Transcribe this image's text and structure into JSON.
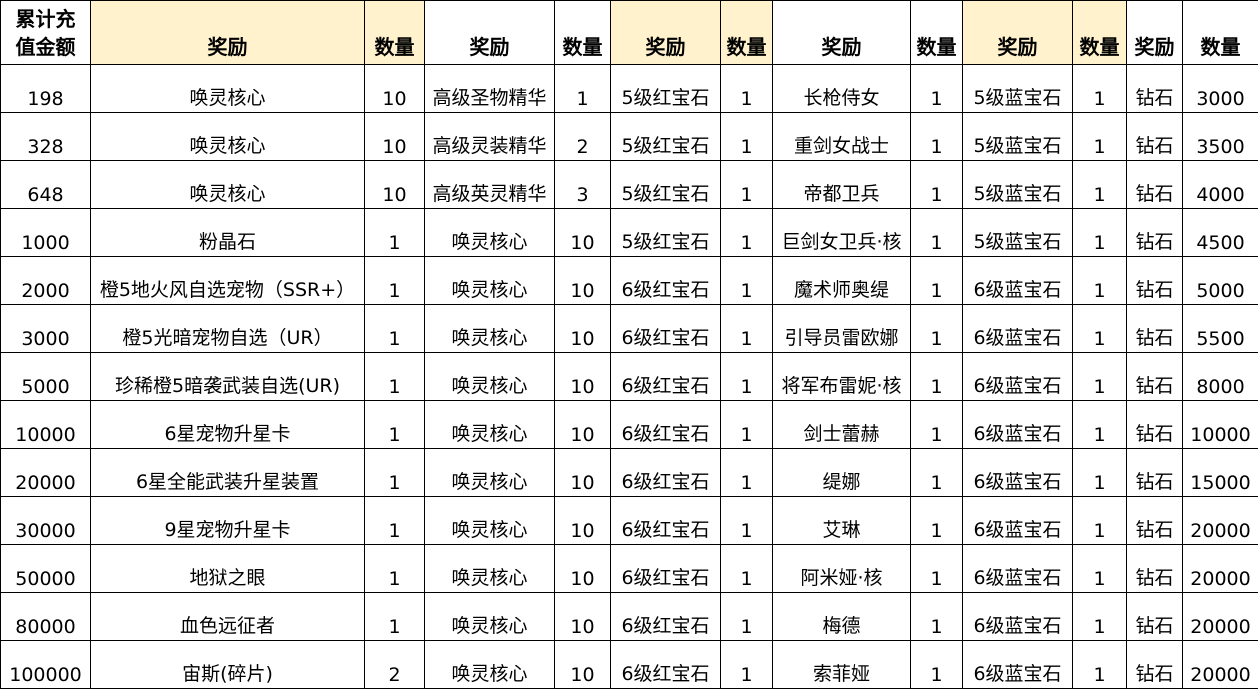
{
  "headers": [
    "累计充值金额",
    "奖励",
    "数量",
    "奖励",
    "数量",
    "奖励",
    "数量",
    "奖励",
    "数量",
    "奖励",
    "数量",
    "奖励",
    "数量"
  ],
  "header_fill": "#fff2cc",
  "rows": [
    [
      "198",
      "唤灵核心",
      "10",
      "高级圣物精华",
      "1",
      "5级红宝石",
      "1",
      "长枪侍女",
      "1",
      "5级蓝宝石",
      "1",
      "钻石",
      "3000"
    ],
    [
      "328",
      "唤灵核心",
      "10",
      "高级灵装精华",
      "2",
      "5级红宝石",
      "1",
      "重剑女战士",
      "1",
      "5级蓝宝石",
      "1",
      "钻石",
      "3500"
    ],
    [
      "648",
      "唤灵核心",
      "10",
      "高级英灵精华",
      "3",
      "5级红宝石",
      "1",
      "帝都卫兵",
      "1",
      "5级蓝宝石",
      "1",
      "钻石",
      "4000"
    ],
    [
      "1000",
      "粉晶石",
      "1",
      "唤灵核心",
      "10",
      "5级红宝石",
      "1",
      "巨剑女卫兵·核",
      "1",
      "5级蓝宝石",
      "1",
      "钻石",
      "4500"
    ],
    [
      "2000",
      "橙5地火风自选宠物（SSR+）",
      "1",
      "唤灵核心",
      "10",
      "6级红宝石",
      "1",
      "魔术师奥缇",
      "1",
      "6级蓝宝石",
      "1",
      "钻石",
      "5000"
    ],
    [
      "3000",
      "橙5光暗宠物自选（UR）",
      "1",
      "唤灵核心",
      "10",
      "6级红宝石",
      "1",
      "引导员雷欧娜",
      "1",
      "6级蓝宝石",
      "1",
      "钻石",
      "5500"
    ],
    [
      "5000",
      "珍稀橙5暗袭武装自选(UR)",
      "1",
      "唤灵核心",
      "10",
      "6级红宝石",
      "1",
      "将军布雷妮·核",
      "1",
      "6级蓝宝石",
      "1",
      "钻石",
      "8000"
    ],
    [
      "10000",
      "6星宠物升星卡",
      "1",
      "唤灵核心",
      "10",
      "6级红宝石",
      "1",
      "剑士蕾赫",
      "1",
      "6级蓝宝石",
      "1",
      "钻石",
      "10000"
    ],
    [
      "20000",
      "6星全能武装升星装置",
      "1",
      "唤灵核心",
      "10",
      "6级红宝石",
      "1",
      "缇娜",
      "1",
      "6级蓝宝石",
      "1",
      "钻石",
      "15000"
    ],
    [
      "30000",
      "9星宠物升星卡",
      "1",
      "唤灵核心",
      "10",
      "6级红宝石",
      "1",
      "艾琳",
      "1",
      "6级蓝宝石",
      "1",
      "钻石",
      "20000"
    ],
    [
      "50000",
      "地狱之眼",
      "1",
      "唤灵核心",
      "10",
      "6级红宝石",
      "1",
      "阿米娅·核",
      "1",
      "6级蓝宝石",
      "1",
      "钻石",
      "20000"
    ],
    [
      "80000",
      "血色远征者",
      "1",
      "唤灵核心",
      "10",
      "6级红宝石",
      "1",
      "梅德",
      "1",
      "6级蓝宝石",
      "1",
      "钻石",
      "20000"
    ],
    [
      "100000",
      "宙斯(碎片)",
      "2",
      "唤灵核心",
      "10",
      "6级红宝石",
      "1",
      "索菲娅",
      "1",
      "6级蓝宝石",
      "1",
      "钻石",
      "20000"
    ]
  ]
}
